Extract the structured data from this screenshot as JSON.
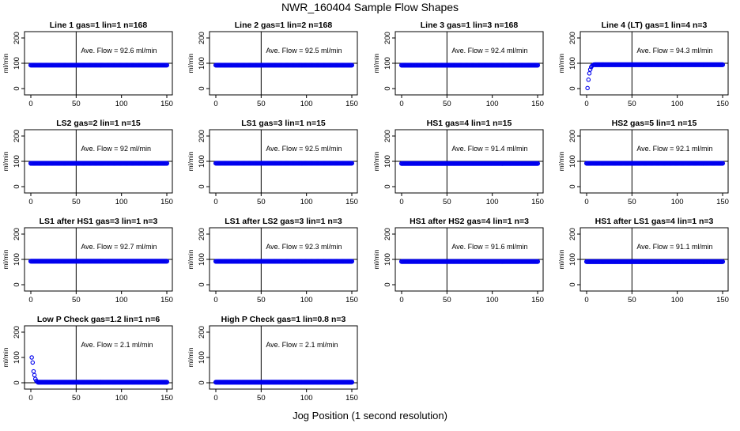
{
  "title": "NWR_160404  Sample Flow Shapes",
  "xlabel": "Jog Position (1 second resolution)",
  "colors": {
    "points": "#0000ee",
    "axes": "#000000"
  },
  "chart_data": [
    {
      "type": "scatter",
      "title": "Line 1 gas=1 lin=1 n=168",
      "ylabel": "ml/min",
      "annotation": "Ave. Flow =  92.6  ml/min",
      "xlim": [
        0,
        150
      ],
      "ylim": [
        0,
        200
      ],
      "xticks": [
        0,
        50,
        100,
        150
      ],
      "yticks": [
        0,
        100,
        200
      ],
      "vline": 50,
      "hline": 100,
      "shape": "flat",
      "flat_value": 92.6,
      "x_range": [
        0,
        150
      ]
    },
    {
      "type": "scatter",
      "title": "Line 2 gas=1 lin=2 n=168",
      "ylabel": "ml/min",
      "annotation": "Ave. Flow =  92.5  ml/min",
      "xlim": [
        0,
        150
      ],
      "ylim": [
        0,
        200
      ],
      "xticks": [
        0,
        50,
        100,
        150
      ],
      "yticks": [
        0,
        100,
        200
      ],
      "vline": 50,
      "hline": 100,
      "shape": "flat",
      "flat_value": 92.5,
      "x_range": [
        0,
        150
      ]
    },
    {
      "type": "scatter",
      "title": "Line 3 gas=1 lin=3 n=168",
      "ylabel": "ml/min",
      "annotation": "Ave. Flow =  92.4  ml/min",
      "xlim": [
        0,
        150
      ],
      "ylim": [
        0,
        200
      ],
      "xticks": [
        0,
        50,
        100,
        150
      ],
      "yticks": [
        0,
        100,
        200
      ],
      "vline": 50,
      "hline": 100,
      "shape": "flat",
      "flat_value": 92.4,
      "x_range": [
        0,
        150
      ]
    },
    {
      "type": "scatter",
      "title": "Line 4 (LT) gas=1 lin=4 n=3",
      "ylabel": "ml/min",
      "annotation": "Ave. Flow =  94.3  ml/min",
      "xlim": [
        0,
        150
      ],
      "ylim": [
        0,
        200
      ],
      "xticks": [
        0,
        50,
        100,
        150
      ],
      "yticks": [
        0,
        100,
        200
      ],
      "vline": 50,
      "hline": 100,
      "shape": "rise",
      "flat_value": 94.3,
      "x_range": [
        0,
        150
      ],
      "initial_points": [
        [
          1,
          2
        ],
        [
          2,
          35
        ],
        [
          3,
          60
        ],
        [
          4,
          75
        ],
        [
          5,
          85
        ],
        [
          6,
          90
        ],
        [
          7,
          93
        ],
        [
          8,
          95
        ]
      ]
    },
    {
      "type": "scatter",
      "title": "LS2 gas=2 lin=1 n=15",
      "ylabel": "ml/min",
      "annotation": "Ave. Flow =  92  ml/min",
      "xlim": [
        0,
        150
      ],
      "ylim": [
        0,
        200
      ],
      "xticks": [
        0,
        50,
        100,
        150
      ],
      "yticks": [
        0,
        100,
        200
      ],
      "vline": 50,
      "hline": 100,
      "shape": "flat",
      "flat_value": 92,
      "x_range": [
        0,
        150
      ]
    },
    {
      "type": "scatter",
      "title": "LS1 gas=3 lin=1 n=15",
      "ylabel": "ml/min",
      "annotation": "Ave. Flow =  92.5  ml/min",
      "xlim": [
        0,
        150
      ],
      "ylim": [
        0,
        200
      ],
      "xticks": [
        0,
        50,
        100,
        150
      ],
      "yticks": [
        0,
        100,
        200
      ],
      "vline": 50,
      "hline": 100,
      "shape": "flat",
      "flat_value": 92.5,
      "x_range": [
        0,
        150
      ]
    },
    {
      "type": "scatter",
      "title": "HS1 gas=4 lin=1 n=15",
      "ylabel": "ml/min",
      "annotation": "Ave. Flow =  91.4  ml/min",
      "xlim": [
        0,
        150
      ],
      "ylim": [
        0,
        200
      ],
      "xticks": [
        0,
        50,
        100,
        150
      ],
      "yticks": [
        0,
        100,
        200
      ],
      "vline": 50,
      "hline": 100,
      "shape": "flat",
      "flat_value": 91.4,
      "x_range": [
        0,
        150
      ]
    },
    {
      "type": "scatter",
      "title": "HS2 gas=5 lin=1 n=15",
      "ylabel": "ml/min",
      "annotation": "Ave. Flow =  92.1  ml/min",
      "xlim": [
        0,
        150
      ],
      "ylim": [
        0,
        200
      ],
      "xticks": [
        0,
        50,
        100,
        150
      ],
      "yticks": [
        0,
        100,
        200
      ],
      "vline": 50,
      "hline": 100,
      "shape": "flat",
      "flat_value": 92.1,
      "x_range": [
        0,
        150
      ]
    },
    {
      "type": "scatter",
      "title": "LS1 after HS1 gas=3 lin=1 n=3",
      "ylabel": "ml/min",
      "annotation": "Ave. Flow =  92.7  ml/min",
      "xlim": [
        0,
        150
      ],
      "ylim": [
        0,
        200
      ],
      "xticks": [
        0,
        50,
        100,
        150
      ],
      "yticks": [
        0,
        100,
        200
      ],
      "vline": 50,
      "hline": 100,
      "shape": "flat",
      "flat_value": 92.7,
      "x_range": [
        0,
        150
      ]
    },
    {
      "type": "scatter",
      "title": "LS1 after LS2 gas=3 lin=1 n=3",
      "ylabel": "ml/min",
      "annotation": "Ave. Flow =  92.3  ml/min",
      "xlim": [
        0,
        150
      ],
      "ylim": [
        0,
        200
      ],
      "xticks": [
        0,
        50,
        100,
        150
      ],
      "yticks": [
        0,
        100,
        200
      ],
      "vline": 50,
      "hline": 100,
      "shape": "flat",
      "flat_value": 92.3,
      "x_range": [
        0,
        150
      ]
    },
    {
      "type": "scatter",
      "title": "HS1 after HS2 gas=4 lin=1 n=3",
      "ylabel": "ml/min",
      "annotation": "Ave. Flow =  91.6  ml/min",
      "xlim": [
        0,
        150
      ],
      "ylim": [
        0,
        200
      ],
      "xticks": [
        0,
        50,
        100,
        150
      ],
      "yticks": [
        0,
        100,
        200
      ],
      "vline": 50,
      "hline": 100,
      "shape": "flat",
      "flat_value": 91.6,
      "x_range": [
        0,
        150
      ]
    },
    {
      "type": "scatter",
      "title": "HS1 after LS1 gas=4 lin=1 n=3",
      "ylabel": "ml/min",
      "annotation": "Ave. Flow =  91.1  ml/min",
      "xlim": [
        0,
        150
      ],
      "ylim": [
        0,
        200
      ],
      "xticks": [
        0,
        50,
        100,
        150
      ],
      "yticks": [
        0,
        100,
        200
      ],
      "vline": 50,
      "hline": 100,
      "shape": "flat",
      "flat_value": 91.1,
      "x_range": [
        0,
        150
      ]
    },
    {
      "type": "scatter",
      "title": "Low P Check gas=1.2 lin=1 n=6",
      "ylabel": "ml/min",
      "annotation": "Ave. Flow =  2.1  ml/min",
      "xlim": [
        0,
        150
      ],
      "ylim": [
        0,
        200
      ],
      "xticks": [
        0,
        50,
        100,
        150
      ],
      "yticks": [
        0,
        100,
        200
      ],
      "vline": 50,
      "hline": 0,
      "shape": "decay",
      "flat_value": 2.1,
      "x_range": [
        0,
        150
      ],
      "initial_points": [
        [
          1,
          100
        ],
        [
          2,
          80
        ],
        [
          3,
          45
        ],
        [
          4,
          30
        ],
        [
          5,
          15
        ],
        [
          6,
          8
        ],
        [
          7,
          4
        ]
      ]
    },
    {
      "type": "scatter",
      "title": "High P Check gas=1 lin=0.8 n=3",
      "ylabel": "ml/min",
      "annotation": "Ave. Flow =  2.1  ml/min",
      "xlim": [
        0,
        150
      ],
      "ylim": [
        0,
        200
      ],
      "xticks": [
        0,
        50,
        100,
        150
      ],
      "yticks": [
        0,
        100,
        200
      ],
      "vline": 50,
      "hline": 0,
      "shape": "flat",
      "flat_value": 2.1,
      "x_range": [
        0,
        150
      ]
    }
  ]
}
